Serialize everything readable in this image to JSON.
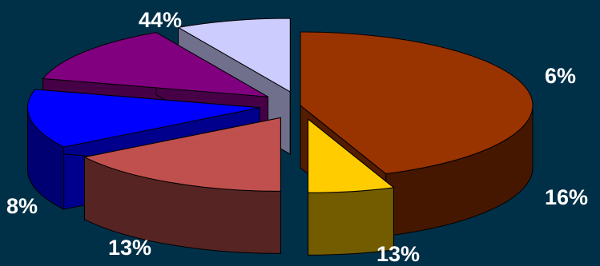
{
  "chart_data": {
    "type": "pie",
    "style": "3d-exploded",
    "title": "",
    "background_color": "#003047",
    "slices": [
      {
        "label": "44%",
        "value": 44,
        "color": "#993300"
      },
      {
        "label": "6%",
        "value": 6,
        "color": "#ffcc00"
      },
      {
        "label": "16%",
        "value": 16,
        "color": "#c0504d"
      },
      {
        "label": "13%",
        "value": 13,
        "color": "#0000ff"
      },
      {
        "label": "13%",
        "value": 13,
        "color": "#800080"
      },
      {
        "label": "8%",
        "value": 8,
        "color": "#ccccff"
      }
    ]
  }
}
